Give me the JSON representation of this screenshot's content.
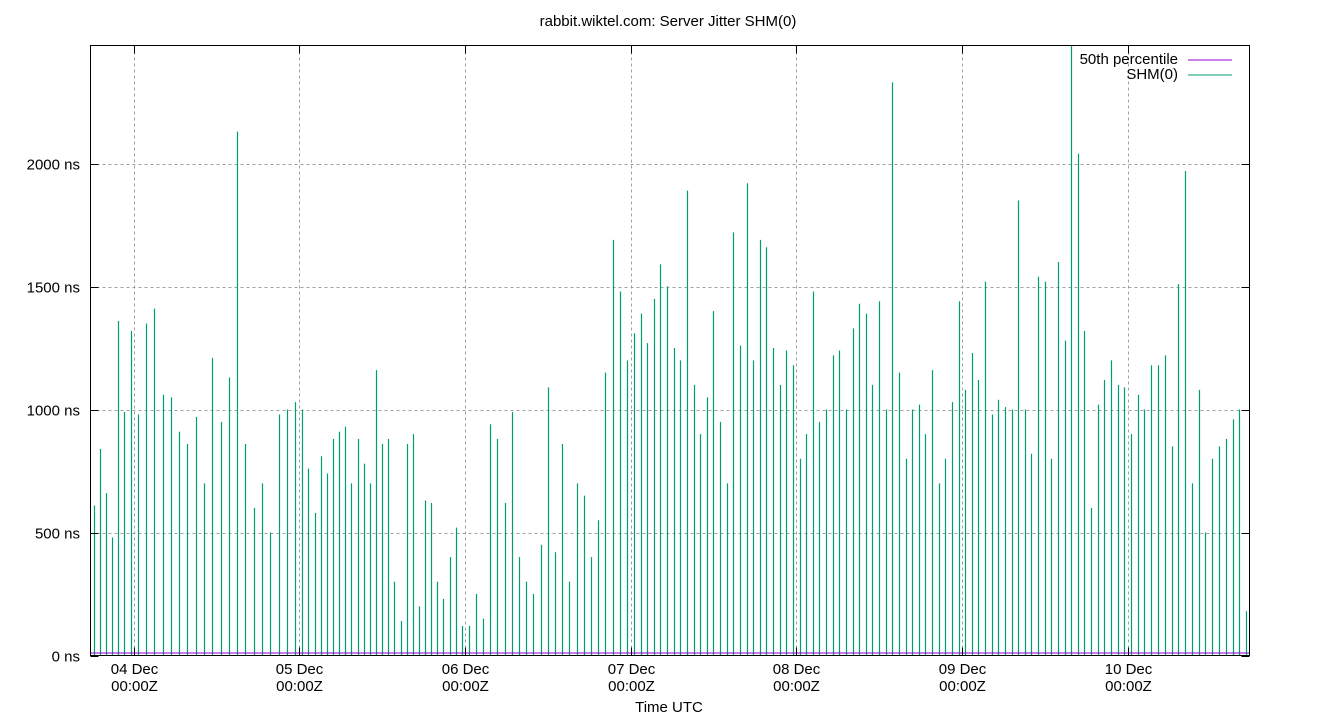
{
  "chart_data": {
    "type": "line",
    "title": "rabbit.wiktel.com: Server Jitter SHM(0)",
    "xlabel": "Time UTC",
    "ylabel": "",
    "xlim": [
      "03 Dec 17:45",
      "10 Dec 17:40"
    ],
    "ylim": [
      0,
      2480
    ],
    "y_unit": "ns",
    "grid": true,
    "legend_placement": "top-right",
    "x_ticks": [
      {
        "date": "04 Dec",
        "time": "00:00Z"
      },
      {
        "date": "05 Dec",
        "time": "00:00Z"
      },
      {
        "date": "06 Dec",
        "time": "00:00Z"
      },
      {
        "date": "07 Dec",
        "time": "00:00Z"
      },
      {
        "date": "08 Dec",
        "time": "00:00Z"
      },
      {
        "date": "09 Dec",
        "time": "00:00Z"
      },
      {
        "date": "10 Dec",
        "time": "00:00Z"
      }
    ],
    "y_ticks": [
      "0 ns",
      "500 ns",
      "1000 ns",
      "1500 ns",
      "2000 ns"
    ],
    "y_tick_values": [
      0,
      500,
      1000,
      1500,
      2000
    ],
    "series": [
      {
        "name": "50th percentile",
        "color": "#9400d3",
        "value": 10
      },
      {
        "name": "SHM(0)",
        "color": "#009e73",
        "days": [
          {
            "day": "03 Dec",
            "values": [
              610,
              840,
              660,
              480,
              1360,
              990,
              1320
            ]
          },
          {
            "day": "04 Dec",
            "values": [
              980,
              1350,
              1410,
              1060,
              1050,
              910,
              860,
              970,
              700,
              1210,
              950,
              1130,
              2130,
              860,
              600,
              700,
              500,
              980,
              1000,
              1030
            ]
          },
          {
            "day": "05 Dec",
            "values": [
              1000,
              760,
              580,
              810,
              740,
              880,
              910,
              930,
              700,
              880,
              780,
              700,
              1160,
              860,
              880,
              300,
              140,
              860,
              900,
              200,
              630,
              620,
              300,
              230,
              400,
              520,
              120
            ]
          },
          {
            "day": "06 Dec",
            "values": [
              120,
              250,
              150,
              940,
              880,
              620,
              990,
              400,
              300,
              250,
              450,
              1090,
              420,
              860,
              300,
              700,
              650,
              400,
              550,
              1150,
              1690,
              1480,
              1200
            ]
          },
          {
            "day": "07 Dec",
            "values": [
              1310,
              1390,
              1270,
              1450,
              1590,
              1500,
              1250,
              1200,
              1890,
              1100,
              900,
              1050,
              1400,
              950,
              700,
              1720,
              1260,
              1920,
              1200,
              1690,
              1660,
              1250,
              1100,
              1240,
              1180
            ]
          },
          {
            "day": "08 Dec",
            "values": [
              800,
              900,
              1480,
              950,
              1000,
              1220,
              1240,
              1000,
              1330,
              1430,
              1390,
              1100,
              1440,
              1000,
              2330,
              1150,
              800,
              1000,
              1020,
              900,
              1160,
              700,
              800,
              1030,
              1440
            ]
          },
          {
            "day": "09 Dec",
            "values": [
              1080,
              1230,
              1120,
              1520,
              980,
              1040,
              1010,
              1000,
              1850,
              1000,
              820,
              1540,
              1520,
              800,
              1600,
              1280,
              2480,
              2040,
              1320,
              600,
              1020,
              1120,
              1200,
              1100,
              1090
            ]
          },
          {
            "day": "10 Dec",
            "values": [
              900,
              1060,
              1000,
              1180,
              1180,
              1220,
              850,
              1510,
              1970,
              700,
              1080,
              500,
              800,
              850,
              880,
              960,
              1000,
              180
            ]
          }
        ]
      }
    ]
  }
}
